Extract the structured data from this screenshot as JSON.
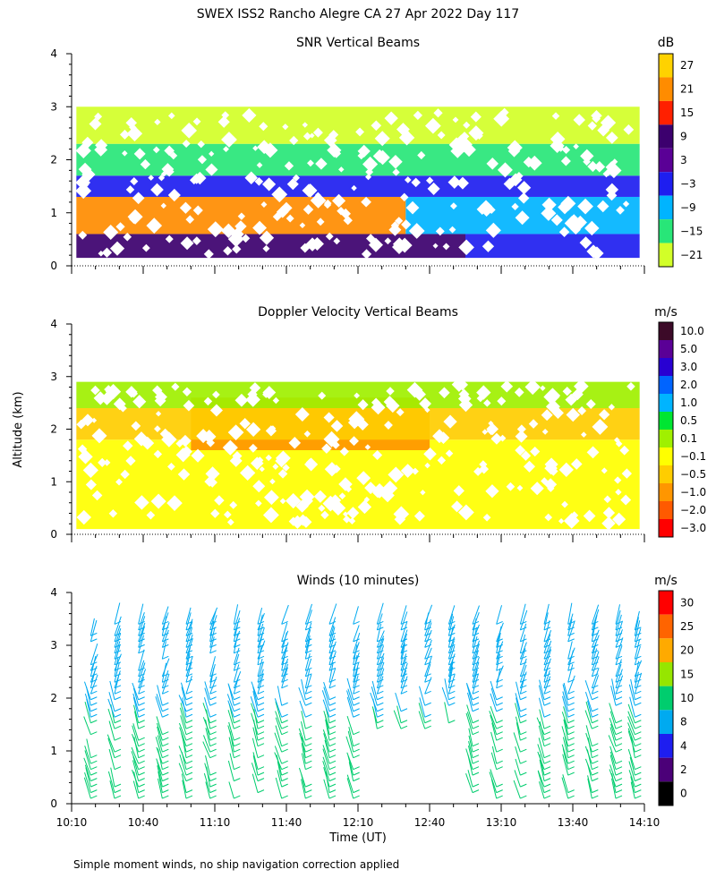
{
  "figure_title": "SWEX ISS2 Rancho Alegre CA  27 Apr 2022 Day 117",
  "footnote": "Simple moment winds, no ship navigation correction applied",
  "chart_data": [
    {
      "type": "heatmap",
      "title": "SNR Vertical Beams",
      "xlabel": "Time (UT)",
      "ylabel": "Altitude (km)",
      "xlim_minutes_from_1010": [
        0,
        240
      ],
      "ylim_km": [
        0,
        4
      ],
      "yticks": [
        "0",
        "1",
        "2",
        "3",
        "4"
      ],
      "colorbar": {
        "unit": "dB",
        "levels": [
          "27",
          "21",
          "15",
          "9",
          "3",
          "−3",
          "−9",
          "−15",
          "−21"
        ],
        "colors": [
          "#ffd200",
          "#ff8c00",
          "#ff2000",
          "#3c006e",
          "#5a0096",
          "#1e1ef0",
          "#00b4ff",
          "#28e678",
          "#d2ff28"
        ]
      },
      "regions": [
        {
          "t0": 2,
          "t1": 165,
          "z0": 0.15,
          "z1": 0.6,
          "snr": "9"
        },
        {
          "t0": 165,
          "t1": 238,
          "z0": 0.15,
          "z1": 0.6,
          "snr": "-3"
        },
        {
          "t0": 2,
          "t1": 140,
          "z0": 0.6,
          "z1": 1.3,
          "snr": "21"
        },
        {
          "t0": 140,
          "t1": 238,
          "z0": 0.6,
          "z1": 1.3,
          "snr": "-9"
        },
        {
          "t0": 2,
          "t1": 238,
          "z0": 1.3,
          "z1": 1.7,
          "snr": "-3"
        },
        {
          "t0": 2,
          "t1": 238,
          "z0": 1.7,
          "z1": 2.3,
          "snr": "-15"
        },
        {
          "t0": 2,
          "t1": 238,
          "z0": 2.3,
          "z1": 3.0,
          "snr": "-21"
        }
      ]
    },
    {
      "type": "heatmap",
      "title": "Doppler Velocity Vertical Beams",
      "xlabel": "Time (UT)",
      "ylabel": "Altitude (km)",
      "xlim_minutes_from_1010": [
        0,
        240
      ],
      "ylim_km": [
        0,
        4
      ],
      "yticks": [
        "0",
        "1",
        "2",
        "3",
        "4"
      ],
      "colorbar": {
        "unit": "m/s",
        "levels": [
          "10.0",
          "5.0",
          "3.0",
          "2.0",
          "1.0",
          "0.5",
          "0.1",
          "−0.1",
          "−0.5",
          "−1.0",
          "−2.0",
          "−3.0"
        ],
        "colors": [
          "#3c0a28",
          "#5a0096",
          "#2800d2",
          "#0064ff",
          "#00b4ff",
          "#00e632",
          "#a0f000",
          "#ffff00",
          "#ffcd00",
          "#ff9600",
          "#ff5a00",
          "#ff0000"
        ]
      },
      "regions": [
        {
          "t0": 2,
          "t1": 238,
          "z0": 0.1,
          "z1": 1.8,
          "velocity": "-0.1"
        },
        {
          "t0": 50,
          "t1": 150,
          "z0": 1.6,
          "z1": 2.6,
          "velocity": "-1.0"
        },
        {
          "t0": 2,
          "t1": 238,
          "z0": 1.8,
          "z1": 2.4,
          "velocity": "-0.5"
        },
        {
          "t0": 2,
          "t1": 238,
          "z0": 2.4,
          "z1": 2.9,
          "velocity": "0.1"
        }
      ]
    },
    {
      "type": "scatter",
      "subtype": "wind_barbs",
      "title": "Winds (10 minutes)",
      "xlabel": "Time (UT)",
      "ylabel": "Altitude (km)",
      "xlim_minutes_from_1010": [
        0,
        240
      ],
      "ylim_km": [
        0,
        4
      ],
      "yticks": [
        "0",
        "1",
        "2",
        "3",
        "4"
      ],
      "xticks": [
        "10:10",
        "10:40",
        "11:10",
        "11:40",
        "12:10",
        "12:40",
        "13:10",
        "13:40",
        "14:10"
      ],
      "colorbar": {
        "unit": "m/s",
        "levels": [
          "30",
          "25",
          "20",
          "15",
          "10",
          "8",
          "4",
          "2",
          "0"
        ],
        "colors": [
          "#ff0000",
          "#ff6400",
          "#ffaa00",
          "#96e600",
          "#00cd6e",
          "#00aaf0",
          "#1e1ef0",
          "#4b0078",
          "#000000"
        ]
      },
      "profile_times_minutes": [
        8,
        18,
        28,
        38,
        48,
        58,
        68,
        78,
        88,
        98,
        108,
        118,
        128,
        138,
        148,
        158,
        168,
        178,
        188,
        198,
        208,
        218,
        228,
        236
      ],
      "low_altitude_speed": "10",
      "upper_altitude_speed": "8"
    }
  ]
}
